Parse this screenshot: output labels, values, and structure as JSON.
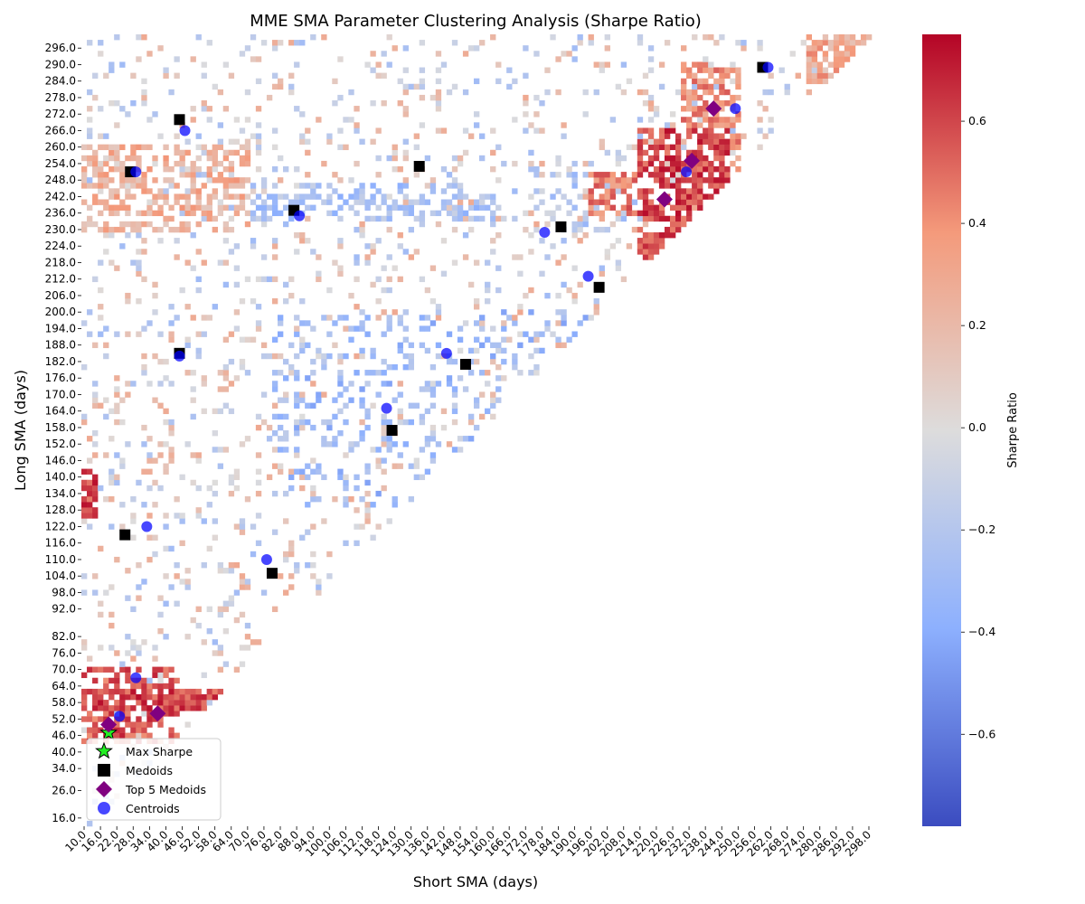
{
  "chart_data": {
    "type": "heatmap",
    "title": "MME SMA Parameter Clustering Analysis (Sharpe Ratio)",
    "xlabel": "Short SMA (days)",
    "ylabel": "Long SMA (days)",
    "colorbar_label": "Sharpe Ratio",
    "colormap": "coolwarm",
    "color_range": [
      -0.78,
      0.77
    ],
    "colorbar_ticks": [
      0.6,
      0.4,
      0.2,
      0.0,
      -0.2,
      -0.4,
      -0.6
    ],
    "colorbar_tick_labels": [
      "0.6",
      "0.4",
      "0.2",
      "0.0",
      "−0.2",
      "−0.4",
      "−0.6"
    ],
    "x_range": [
      10,
      300
    ],
    "y_range": [
      14,
      302
    ],
    "cell_step": 2,
    "xticks": [
      10,
      16,
      22,
      28,
      34,
      40,
      46,
      52,
      58,
      64,
      70,
      76,
      82,
      88,
      94,
      100,
      106,
      112,
      118,
      124,
      130,
      136,
      142,
      148,
      154,
      160,
      166,
      172,
      178,
      184,
      190,
      196,
      202,
      208,
      214,
      220,
      226,
      232,
      238,
      244,
      250,
      256,
      262,
      268,
      274,
      280,
      286,
      292,
      298
    ],
    "xtick_labels": [
      "10.0",
      "16.0",
      "22.0",
      "28.0",
      "34.0",
      "40.0",
      "46.0",
      "52.0",
      "58.0",
      "64.0",
      "70.0",
      "76.0",
      "82.0",
      "88.0",
      "94.0",
      "100.0",
      "106.0",
      "112.0",
      "118.0",
      "124.0",
      "130.0",
      "136.0",
      "142.0",
      "148.0",
      "154.0",
      "160.0",
      "166.0",
      "172.0",
      "178.0",
      "184.0",
      "190.0",
      "196.0",
      "202.0",
      "208.0",
      "214.0",
      "220.0",
      "226.0",
      "232.0",
      "238.0",
      "244.0",
      "250.0",
      "256.0",
      "262.0",
      "268.0",
      "274.0",
      "280.0",
      "286.0",
      "292.0",
      "298.0"
    ],
    "yticks": [
      296,
      290,
      284,
      278,
      272,
      266,
      260,
      254,
      248,
      242,
      236,
      230,
      224,
      218,
      212,
      206,
      200,
      194,
      188,
      182,
      176,
      170,
      164,
      158,
      152,
      146,
      140,
      134,
      128,
      122,
      116,
      110,
      104,
      98,
      92,
      82,
      76,
      70,
      64,
      58,
      52,
      46,
      40,
      34,
      26,
      16
    ],
    "ytick_labels": [
      "296.0",
      "290.0",
      "284.0",
      "278.0",
      "272.0",
      "266.0",
      "260.0",
      "254.0",
      "248.0",
      "242.0",
      "236.0",
      "230.0",
      "224.0",
      "218.0",
      "212.0",
      "206.0",
      "200.0",
      "194.0",
      "188.0",
      "182.0",
      "176.0",
      "170.0",
      "164.0",
      "158.0",
      "152.0",
      "146.0",
      "140.0",
      "134.0",
      "128.0",
      "122.0",
      "116.0",
      "110.0",
      "104.0",
      "98.0",
      "92.0",
      "82.0",
      "76.0",
      "70.0",
      "64.0",
      "58.0",
      "52.0",
      "46.0",
      "40.0",
      "34.0",
      "26.0",
      "16.0"
    ],
    "regions": [
      {
        "x": [
          10,
          80
        ],
        "y": [
          56,
          62
        ],
        "value": 0.6,
        "density": 0.85
      },
      {
        "x": [
          10,
          45
        ],
        "y": [
          44,
          70
        ],
        "value": 0.55,
        "density": 0.55
      },
      {
        "x": [
          10,
          14
        ],
        "y": [
          126,
          142
        ],
        "value": 0.6,
        "density": 0.7
      },
      {
        "x": [
          214,
          246
        ],
        "y": [
          220,
          266
        ],
        "value": 0.6,
        "density": 0.7
      },
      {
        "x": [
          230,
          250
        ],
        "y": [
          236,
          290
        ],
        "value": 0.4,
        "density": 0.55
      },
      {
        "x": [
          196,
          232
        ],
        "y": [
          236,
          250
        ],
        "value": 0.45,
        "density": 0.55
      },
      {
        "x": [
          276,
          296
        ],
        "y": [
          284,
          300
        ],
        "value": 0.3,
        "density": 0.7
      },
      {
        "x": [
          10,
          70
        ],
        "y": [
          230,
          260
        ],
        "value": 0.25,
        "density": 0.45
      },
      {
        "x": [
          66,
          160
        ],
        "y": [
          234,
          246
        ],
        "value": -0.25,
        "density": 0.35
      },
      {
        "x": [
          80,
          200
        ],
        "y": [
          130,
          200
        ],
        "value": -0.3,
        "density": 0.15
      },
      {
        "x": [
          175,
          215
        ],
        "y": [
          230,
          250
        ],
        "value": -0.2,
        "density": 0.35
      }
    ],
    "background_value_range": [
      -0.3,
      0.3
    ],
    "background_density": 0.12,
    "medoids": [
      {
        "x": 46,
        "y": 271
      },
      {
        "x": 28,
        "y": 252
      },
      {
        "x": 88,
        "y": 238
      },
      {
        "x": 134,
        "y": 254
      },
      {
        "x": 186,
        "y": 232
      },
      {
        "x": 200,
        "y": 210
      },
      {
        "x": 46,
        "y": 186
      },
      {
        "x": 151,
        "y": 182
      },
      {
        "x": 124,
        "y": 158
      },
      {
        "x": 26,
        "y": 120
      },
      {
        "x": 80,
        "y": 106
      },
      {
        "x": 260,
        "y": 290
      }
    ],
    "top5_medoids": [
      {
        "x": 20,
        "y": 51
      },
      {
        "x": 38,
        "y": 55
      },
      {
        "x": 224,
        "y": 242
      },
      {
        "x": 234,
        "y": 256
      },
      {
        "x": 242,
        "y": 275
      }
    ],
    "centroids": [
      {
        "x": 48,
        "y": 267
      },
      {
        "x": 30,
        "y": 252
      },
      {
        "x": 90,
        "y": 236
      },
      {
        "x": 180,
        "y": 230
      },
      {
        "x": 196,
        "y": 214
      },
      {
        "x": 46,
        "y": 185
      },
      {
        "x": 144,
        "y": 186
      },
      {
        "x": 122,
        "y": 166
      },
      {
        "x": 34,
        "y": 123
      },
      {
        "x": 78,
        "y": 111
      },
      {
        "x": 30,
        "y": 68
      },
      {
        "x": 24,
        "y": 54
      },
      {
        "x": 232,
        "y": 252
      },
      {
        "x": 250,
        "y": 275
      },
      {
        "x": 262,
        "y": 290
      }
    ],
    "max_sharpe": {
      "x": 20,
      "y": 48
    },
    "legend_position": "lower-left",
    "legend": [
      {
        "label": "Max Sharpe",
        "marker": "star",
        "color": "#22ee22"
      },
      {
        "label": "Medoids",
        "marker": "square",
        "color": "#000000"
      },
      {
        "label": "Top 5 Medoids",
        "marker": "diamond",
        "color": "#800080"
      },
      {
        "label": "Centroids",
        "marker": "circle",
        "color": "#0000ff"
      }
    ]
  }
}
